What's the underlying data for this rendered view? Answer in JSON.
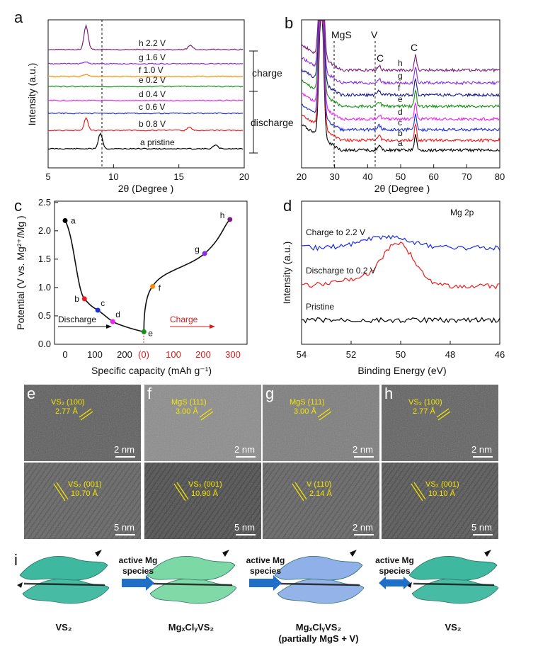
{
  "panel_a": {
    "letter": "a",
    "type": "line",
    "xlabel": "2θ (Degree )",
    "ylabel": "Intensity  (a.u.)",
    "xlim": [
      5,
      20
    ],
    "xticks": [
      "5",
      "10",
      "15",
      "20"
    ],
    "dashed_line_x": 9,
    "traces": [
      {
        "key": "a",
        "label": "pristine",
        "color": "#000000"
      },
      {
        "key": "b",
        "label": "0.8 V",
        "color": "#ee1c1c"
      },
      {
        "key": "c",
        "label": "0.6 V",
        "color": "#1a2ee0"
      },
      {
        "key": "d",
        "label": "0.4 V",
        "color": "#ee22ee"
      },
      {
        "key": "e",
        "label": "0.2 V",
        "color": "#149214"
      },
      {
        "key": "f",
        "label": "1.0 V",
        "color": "#ff8c00"
      },
      {
        "key": "g",
        "label": "1.6 V",
        "color": "#8a2be2"
      },
      {
        "key": "h",
        "label": "2.2 V",
        "color": "#7b1f7b"
      }
    ],
    "charge_label": "charge",
    "discharge_label": "discharge"
  },
  "panel_b": {
    "letter": "b",
    "type": "line",
    "xlabel": "2θ (Degree )",
    "xlim": [
      20,
      80
    ],
    "xticks": [
      "20",
      "30",
      "40",
      "50",
      "60",
      "70",
      "80"
    ],
    "annotations": [
      "MgS",
      "V",
      "C",
      "C"
    ],
    "trace_keys": [
      "a",
      "b",
      "c",
      "d",
      "e",
      "f",
      "g",
      "h"
    ],
    "colors": [
      "#000000",
      "#ee1c1c",
      "#1a2ee0",
      "#ee22ee",
      "#149214",
      "#1a1a8a",
      "#8a2be2",
      "#7b1f7b"
    ]
  },
  "panel_c": {
    "letter": "c",
    "type": "line",
    "xlabel": "Specific capacity  (mAh g⁻¹)",
    "ylabel": "Potential (V vs. Mg²⁺/Mg )",
    "xticks_discharge": [
      "0",
      "100",
      "200"
    ],
    "xticks_charge": [
      "(0)",
      "100",
      "200",
      "300"
    ],
    "yticks": [
      "0.0",
      "0.5",
      "1.0",
      "1.5",
      "2.0",
      "2.5"
    ],
    "discharge_label": "Discharge",
    "charge_label": "Charge",
    "points": [
      {
        "key": "a",
        "x": 0,
        "y": 2.18,
        "color": "#000000"
      },
      {
        "key": "b",
        "x": 65,
        "y": 0.8,
        "color": "#ee1c1c"
      },
      {
        "key": "c",
        "x": 110,
        "y": 0.6,
        "color": "#1a2ee0"
      },
      {
        "key": "d",
        "x": 160,
        "y": 0.4,
        "color": "#ee22ee"
      },
      {
        "key": "e",
        "x": 265,
        "y": 0.22,
        "color": "#149214"
      },
      {
        "key": "f",
        "x": 30,
        "y": 1.02,
        "color": "#ff8c00",
        "phase": "charge"
      },
      {
        "key": "g",
        "x": 205,
        "y": 1.6,
        "color": "#8a2be2",
        "phase": "charge"
      },
      {
        "key": "h",
        "x": 290,
        "y": 2.2,
        "color": "#7b1f7b",
        "phase": "charge"
      }
    ]
  },
  "panel_d": {
    "letter": "d",
    "type": "line",
    "title": "Mg 2p",
    "xlabel": "Binding Energy (eV)",
    "ylabel": "Intensity  (a.u.)",
    "xlim": [
      54,
      46
    ],
    "xticks": [
      "54",
      "52",
      "50",
      "48",
      "46"
    ],
    "series": [
      {
        "name": "Charge to 2.2 V",
        "color": "#1a2ee0"
      },
      {
        "name": "Discharge to 0.2 V",
        "color": "#ee1c1c"
      },
      {
        "name": "Pristine",
        "color": "#000000"
      }
    ]
  },
  "tem": {
    "panels": [
      {
        "letter": "e",
        "top_label": [
          "VS₂ (100)",
          "2.77 Å"
        ],
        "top_scale": "2 nm",
        "bottom_label": [
          "VS₂ (001)",
          "10.70 Å"
        ],
        "bottom_scale": "5 nm"
      },
      {
        "letter": "f",
        "top_label": [
          "MgS (111)",
          "3.00 Å"
        ],
        "top_scale": "2 nm",
        "bottom_label": [
          "VS₂ (001)",
          "10.90 Å"
        ],
        "bottom_scale": "5 nm"
      },
      {
        "letter": "g",
        "top_label": [
          "MgS (111)",
          "3.00 Å"
        ],
        "top_scale": "2 nm",
        "bottom_label": [
          "V (110)",
          "2.14 Å"
        ],
        "bottom_scale": "2 nm"
      },
      {
        "letter": "h",
        "top_label": [
          "VS₂ (100)",
          "2.77 Å"
        ],
        "top_scale": "2 nm",
        "bottom_label": [
          "VS₂ (001)",
          "10.10 Å"
        ],
        "bottom_scale": "5 nm"
      }
    ]
  },
  "schematic": {
    "letter": "i",
    "arrow_label_line1": "active Mg",
    "arrow_label_line2": "species",
    "stages": [
      "VS₂",
      "MgₓClᵧVS₂",
      "MgₓClᵧVS₂",
      "VS₂"
    ],
    "stage_note": "(partially MgS + V)",
    "colors": [
      "#3fb8a0",
      "#7cd8a4",
      "#8fb0e8",
      "#3fb8a0"
    ]
  }
}
